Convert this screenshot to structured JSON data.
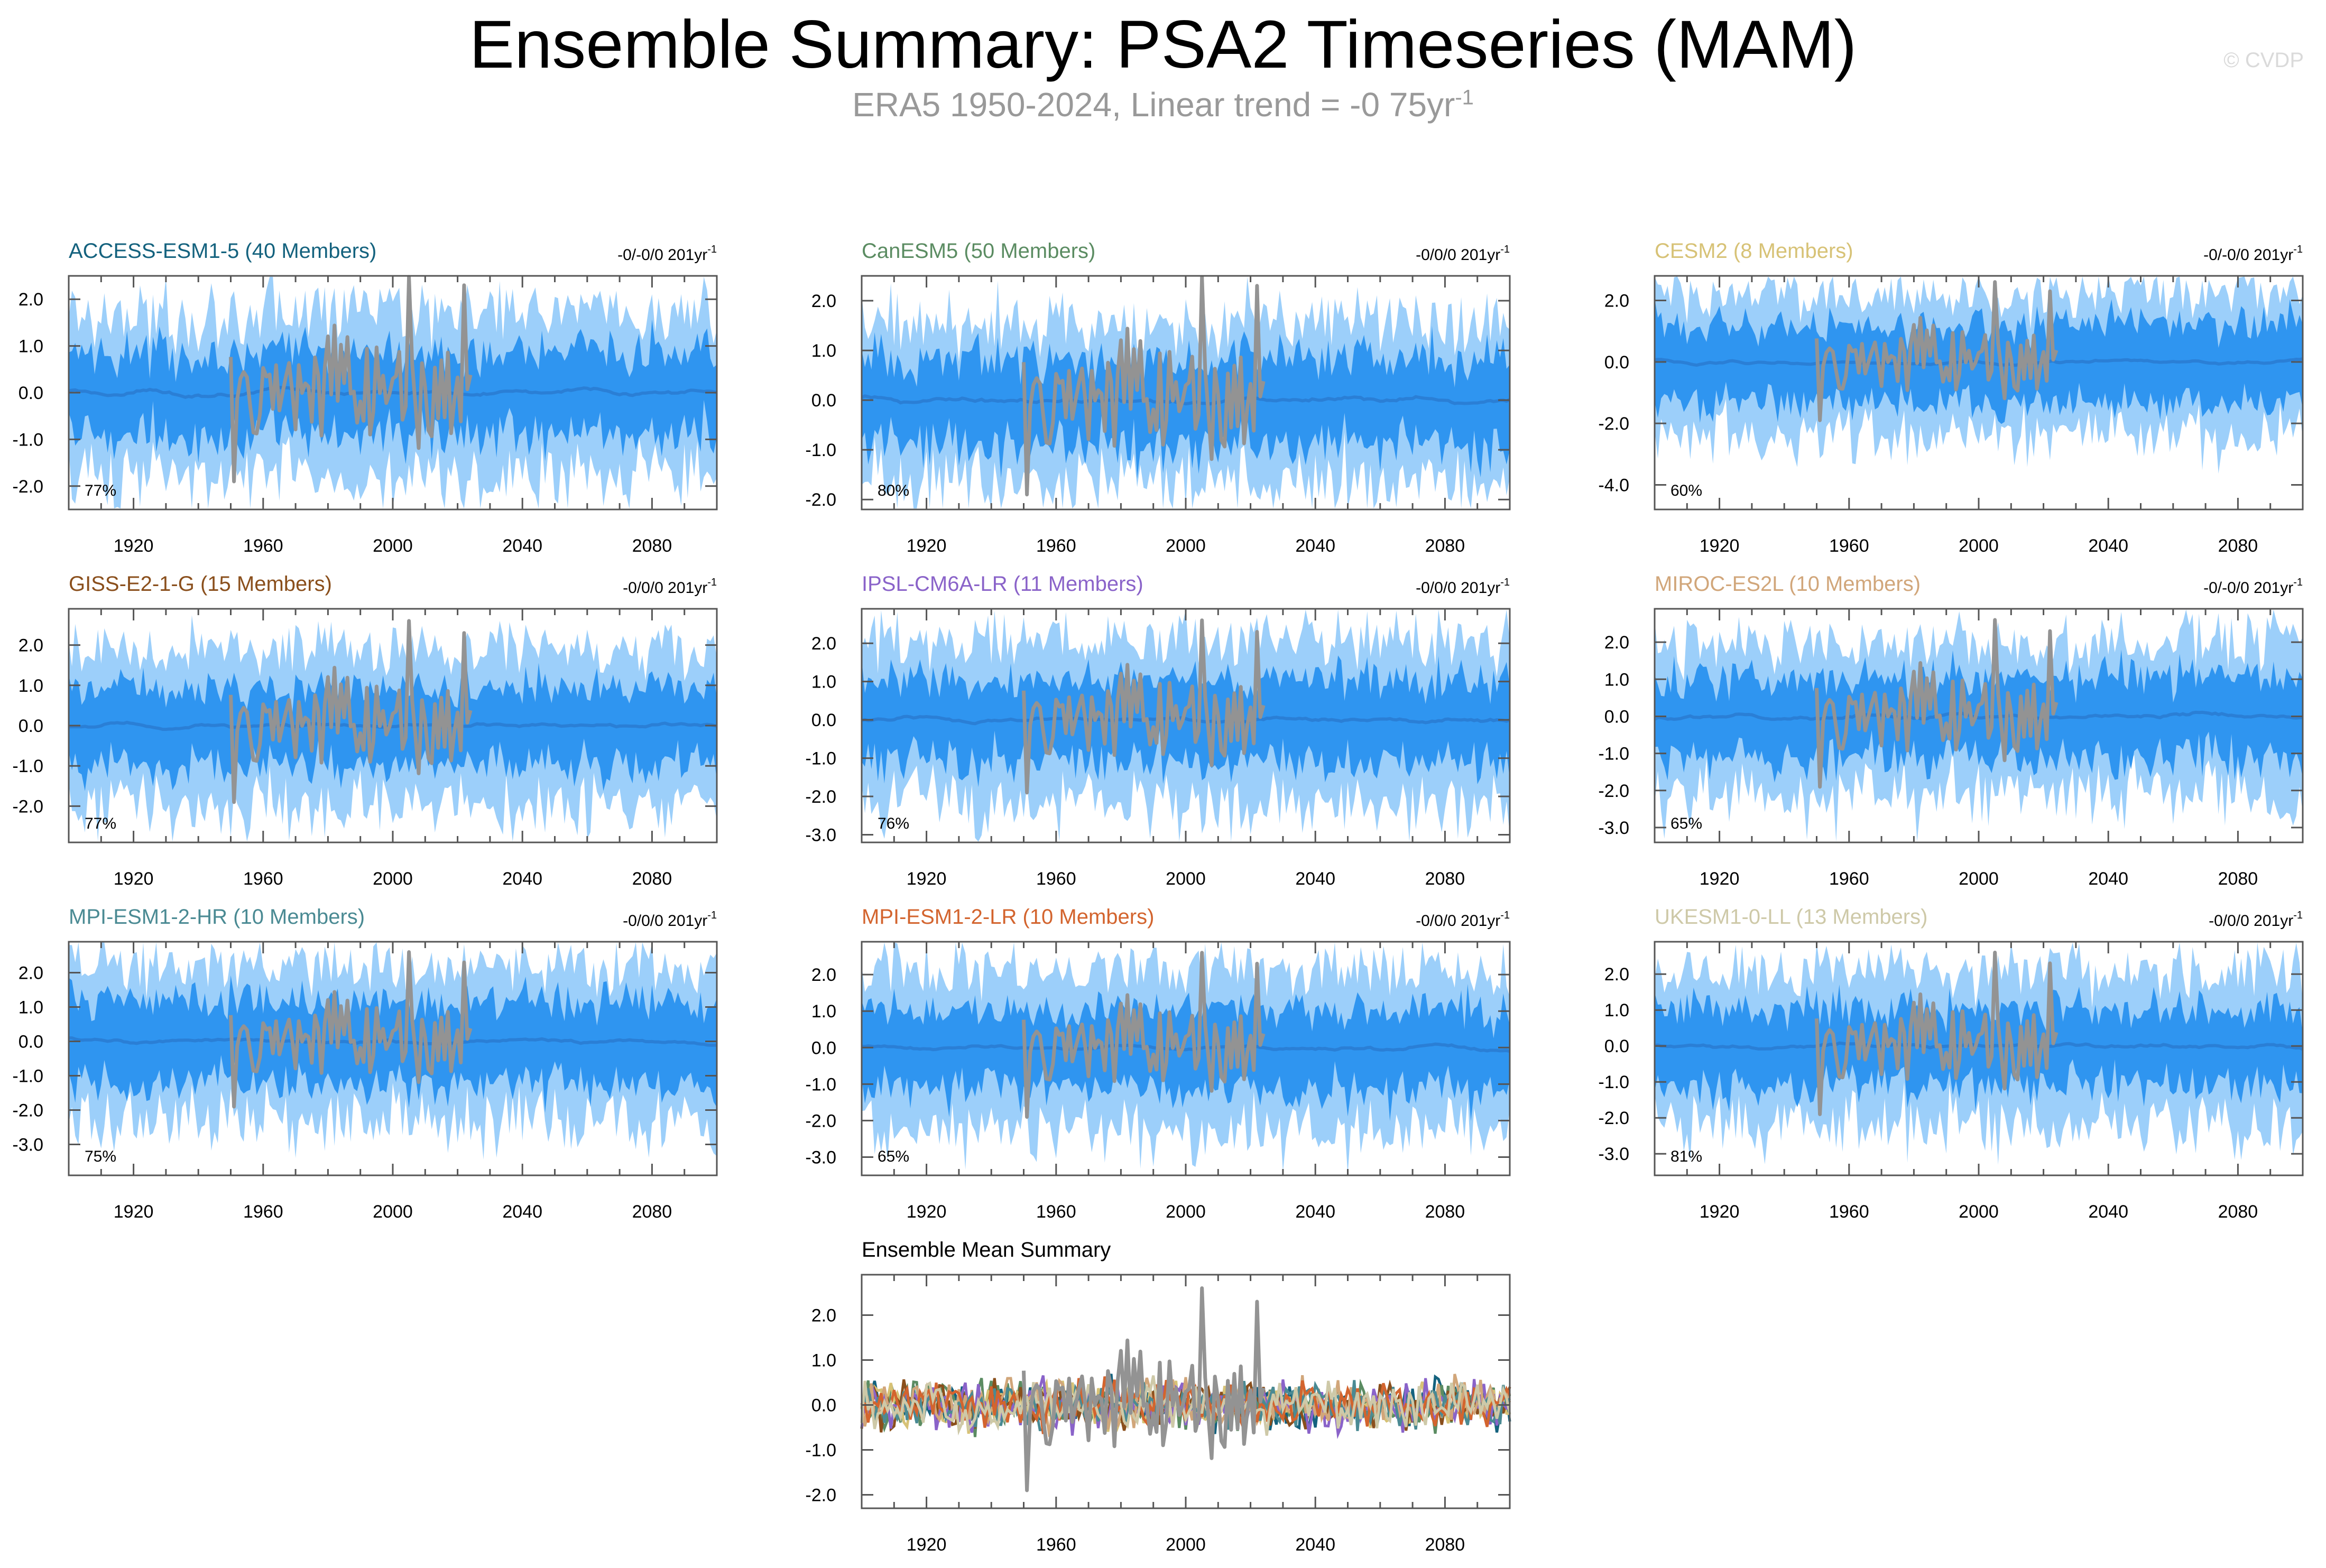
{
  "page": {
    "title": "Ensemble Summary: PSA2 Timeseries (MAM)",
    "subtitle_text": "ERA5 1950-2024, Linear trend = -0 75yr",
    "subtitle_sup": "-1",
    "watermark": "© CVDP"
  },
  "colors": {
    "band_outer": "#9ccffa",
    "band_inner": "#2f95f0",
    "ensemble_mean": "#2a7fd6",
    "observations": "#939393",
    "axis": "#555555"
  },
  "chart_data": [
    {
      "type": "area",
      "title": "ACCESS-ESM1-5 (40 Members)",
      "title_color": "#14627e",
      "trend_text": "-0/-0/0 201yr",
      "pct": "77%",
      "x_ticks": [
        "1920",
        "1960",
        "2000",
        "2040",
        "2080"
      ],
      "ylim": [
        -2.5,
        2.5
      ],
      "y_ticks": [
        2.0,
        1.0,
        0.0,
        -1.0,
        -2.0
      ],
      "y_tick_labels": [
        "2.0",
        "1.0",
        "0.0",
        "-1.0",
        "-2.0"
      ],
      "xlim": [
        1900,
        2100
      ],
      "band_outer_width": 1.7,
      "band_inner_width": 0.9,
      "obs_years": [
        1950,
        2024
      ]
    },
    {
      "type": "area",
      "title": "CanESM5 (50 Members)",
      "title_color": "#5b8c62",
      "trend_text": "-0/0/0 201yr",
      "pct": "80%",
      "x_ticks": [
        "1920",
        "1960",
        "2000",
        "2040",
        "2080"
      ],
      "ylim": [
        -2.2,
        2.5
      ],
      "y_ticks": [
        2.0,
        1.0,
        0.0,
        -1.0,
        -2.0
      ],
      "y_tick_labels": [
        "2.0",
        "1.0",
        "0.0",
        "-1.0",
        "-2.0"
      ],
      "xlim": [
        1900,
        2100
      ],
      "band_outer_width": 1.6,
      "band_inner_width": 0.9,
      "obs_years": [
        1950,
        2024
      ]
    },
    {
      "type": "area",
      "title": "CESM2 (8 Members)",
      "title_color": "#d7c276",
      "trend_text": "-0/-0/0 201yr",
      "pct": "60%",
      "x_ticks": [
        "1920",
        "1960",
        "2000",
        "2040",
        "2080"
      ],
      "ylim": [
        -4.8,
        2.8
      ],
      "y_ticks": [
        2.0,
        0.0,
        -2.0,
        -4.0
      ],
      "y_tick_labels": [
        "2.0",
        "0.0",
        "-2.0",
        "-4.0"
      ],
      "xlim": [
        1900,
        2100
      ],
      "band_outer_width": 2.2,
      "band_inner_width": 1.3,
      "obs_years": [
        1950,
        2024
      ]
    },
    {
      "type": "area",
      "title": "GISS-E2-1-G (15 Members)",
      "title_color": "#8a4f1c",
      "trend_text": "-0/0/0 201yr",
      "pct": "77%",
      "x_ticks": [
        "1920",
        "1960",
        "2000",
        "2040",
        "2080"
      ],
      "ylim": [
        -2.9,
        2.9
      ],
      "y_ticks": [
        2.0,
        1.0,
        0.0,
        -1.0,
        -2.0
      ],
      "y_tick_labels": [
        "2.0",
        "1.0",
        "0.0",
        "-1.0",
        "-2.0"
      ],
      "xlim": [
        1900,
        2100
      ],
      "band_outer_width": 1.9,
      "band_inner_width": 1.0,
      "obs_years": [
        1950,
        2024
      ]
    },
    {
      "type": "area",
      "title": "IPSL-CM6A-LR (11 Members)",
      "title_color": "#8a63c9",
      "trend_text": "-0/0/0 201yr",
      "pct": "76%",
      "x_ticks": [
        "1920",
        "1960",
        "2000",
        "2040",
        "2080"
      ],
      "ylim": [
        -3.2,
        2.9
      ],
      "y_ticks": [
        2.0,
        1.0,
        0.0,
        -1.0,
        -2.0,
        -3.0
      ],
      "y_tick_labels": [
        "2.0",
        "1.0",
        "0.0",
        "-1.0",
        "-2.0",
        "-3.0"
      ],
      "xlim": [
        1900,
        2100
      ],
      "band_outer_width": 2.1,
      "band_inner_width": 1.1,
      "obs_years": [
        1950,
        2024
      ]
    },
    {
      "type": "area",
      "title": "MIROC-ES2L (10 Members)",
      "title_color": "#d1a67a",
      "trend_text": "-0/-0/0 201yr",
      "pct": "65%",
      "x_ticks": [
        "1920",
        "1960",
        "2000",
        "2040",
        "2080"
      ],
      "ylim": [
        -3.4,
        2.9
      ],
      "y_ticks": [
        2.0,
        1.0,
        0.0,
        -1.0,
        -2.0,
        -3.0
      ],
      "y_tick_labels": [
        "2.0",
        "1.0",
        "0.0",
        "-1.0",
        "-2.0",
        "-3.0"
      ],
      "xlim": [
        1900,
        2100
      ],
      "band_outer_width": 2.0,
      "band_inner_width": 1.1,
      "obs_years": [
        1950,
        2024
      ]
    },
    {
      "type": "area",
      "title": "MPI-ESM1-2-HR (10 Members)",
      "title_color": "#4a8a93",
      "trend_text": "-0/0/0 201yr",
      "pct": "75%",
      "x_ticks": [
        "1920",
        "1960",
        "2000",
        "2040",
        "2080"
      ],
      "ylim": [
        -3.9,
        2.9
      ],
      "y_ticks": [
        2.0,
        1.0,
        0.0,
        -1.0,
        -2.0,
        -3.0
      ],
      "y_tick_labels": [
        "2.0",
        "1.0",
        "0.0",
        "-1.0",
        "-2.0",
        "-3.0"
      ],
      "xlim": [
        1900,
        2100
      ],
      "band_outer_width": 2.2,
      "band_inner_width": 1.2,
      "obs_years": [
        1950,
        2024
      ]
    },
    {
      "type": "area",
      "title": "MPI-ESM1-2-LR (10 Members)",
      "title_color": "#d3642e",
      "trend_text": "-0/0/0 201yr",
      "pct": "65%",
      "x_ticks": [
        "1920",
        "1960",
        "2000",
        "2040",
        "2080"
      ],
      "ylim": [
        -3.5,
        2.9
      ],
      "y_ticks": [
        2.0,
        1.0,
        0.0,
        -1.0,
        -2.0,
        -3.0
      ],
      "y_tick_labels": [
        "2.0",
        "1.0",
        "0.0",
        "-1.0",
        "-2.0",
        "-3.0"
      ],
      "xlim": [
        1900,
        2100
      ],
      "band_outer_width": 2.1,
      "band_inner_width": 1.1,
      "obs_years": [
        1950,
        2024
      ]
    },
    {
      "type": "area",
      "title": "UKESM1-0-LL (13 Members)",
      "title_color": "#cec9a8",
      "trend_text": "-0/0/0 201yr",
      "pct": "81%",
      "x_ticks": [
        "1920",
        "1960",
        "2000",
        "2040",
        "2080"
      ],
      "ylim": [
        -3.6,
        2.9
      ],
      "y_ticks": [
        2.0,
        1.0,
        0.0,
        -1.0,
        -2.0,
        -3.0
      ],
      "y_tick_labels": [
        "2.0",
        "1.0",
        "0.0",
        "-1.0",
        "-2.0",
        "-3.0"
      ],
      "xlim": [
        1900,
        2100
      ],
      "band_outer_width": 2.1,
      "band_inner_width": 1.1,
      "obs_years": [
        1950,
        2024
      ]
    },
    {
      "type": "line",
      "title": "Ensemble Mean Summary",
      "title_color": "#000000",
      "trend_text": "",
      "pct": "",
      "x_ticks": [
        "1920",
        "1960",
        "2000",
        "2040",
        "2080"
      ],
      "ylim": [
        -2.3,
        2.9
      ],
      "y_ticks": [
        2.0,
        1.0,
        0.0,
        -1.0,
        -2.0
      ],
      "y_tick_labels": [
        "2.0",
        "1.0",
        "0.0",
        "-1.0",
        "-2.0"
      ],
      "xlim": [
        1900,
        2100
      ],
      "obs_years": [
        1950,
        2024
      ],
      "series_colors": [
        "#14627e",
        "#5b8c62",
        "#d7c276",
        "#8a4f1c",
        "#8a63c9",
        "#d1a67a",
        "#4a8a93",
        "#d3642e",
        "#cec9a8"
      ]
    }
  ]
}
